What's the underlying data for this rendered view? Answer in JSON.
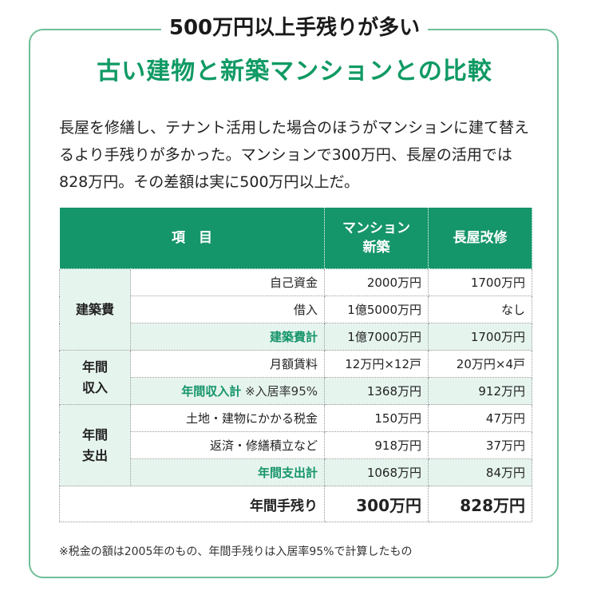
{
  "heading": "500万円以上手残りが多い",
  "title": "古い建物と新築マンションとの比較",
  "lead": "長屋を修繕し、テナント活用した場合のほうがマンションに建て替えるより手残りが多かった。マンションで300万円、長屋の活用では828万円。その差額は実に500万円以上だ。",
  "table": {
    "header": {
      "item": "項　目",
      "col1_line1": "マンション",
      "col1_line2": "新築",
      "col2": "長屋改修"
    },
    "groups": [
      {
        "category_line1": "建築費",
        "category_line2": "",
        "rows": [
          {
            "label": "自己資金",
            "note": "",
            "v1": "2000万円",
            "v2": "1700万円",
            "sub": false
          },
          {
            "label": "借入",
            "note": "",
            "v1": "1億5000万円",
            "v2": "なし",
            "sub": false
          },
          {
            "label": "建築費計",
            "note": "",
            "v1": "1億7000万円",
            "v2": "1700万円",
            "sub": true
          }
        ]
      },
      {
        "category_line1": "年間",
        "category_line2": "収入",
        "rows": [
          {
            "label": "月額賃料",
            "note": "",
            "v1": "12万円×12戸",
            "v2": "20万円×4戸",
            "sub": false
          },
          {
            "label": "年間収入計",
            "note": "※入居率95%",
            "v1": "1368万円",
            "v2": "912万円",
            "sub": true
          }
        ]
      },
      {
        "category_line1": "年間",
        "category_line2": "支出",
        "rows": [
          {
            "label": "土地・建物にかかる税金",
            "note": "",
            "v1": "150万円",
            "v2": "47万円",
            "sub": false
          },
          {
            "label": "返済・修繕積立など",
            "note": "",
            "v1": "918万円",
            "v2": "37万円",
            "sub": false
          },
          {
            "label": "年間支出計",
            "note": "",
            "v1": "1068万円",
            "v2": "84万円",
            "sub": true
          }
        ]
      }
    ],
    "total": {
      "label": "年間手残り",
      "v1": "300万円",
      "v2": "828万円"
    }
  },
  "footnote": "※税金の額は2005年のもの、年間手残りは入居率95%で計算したもの"
}
